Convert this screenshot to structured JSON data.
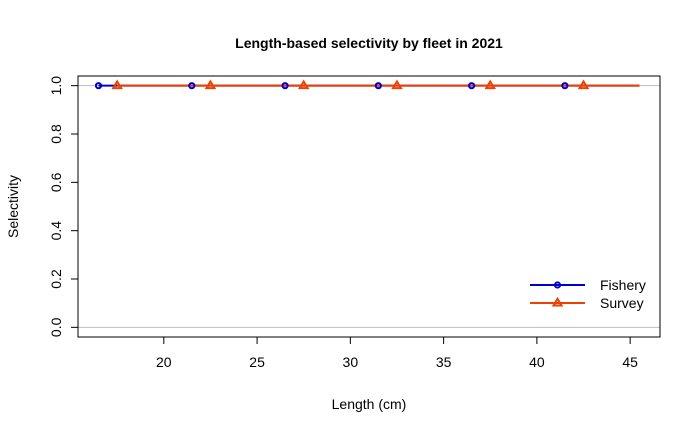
{
  "chart_data": {
    "type": "line",
    "title": "Length-based selectivity by fleet in 2021",
    "xlabel": "Length (cm)",
    "ylabel": "Selectivity",
    "xlim": [
      15.4,
      46.6
    ],
    "ylim": [
      -0.04,
      1.04
    ],
    "xticks": [
      20,
      25,
      30,
      35,
      40,
      45
    ],
    "yticks": [
      0.0,
      0.2,
      0.4,
      0.6,
      0.8,
      1.0
    ],
    "xtick_labels": [
      "20",
      "25",
      "30",
      "35",
      "40",
      "45"
    ],
    "ytick_labels": [
      "0.0",
      "0.2",
      "0.4",
      "0.6",
      "0.8",
      "1.0"
    ],
    "reference_lines": [
      0,
      1
    ],
    "reference_line_color": "#bebebe",
    "legend_position": "bottom-right",
    "series": [
      {
        "name": "Fishery",
        "color": "#0000cd",
        "marker": "circle",
        "line_x": [
          16.5,
          45.5
        ],
        "line_y": [
          1.0,
          1.0
        ],
        "marker_x": [
          16.5,
          21.5,
          26.5,
          31.5,
          36.5,
          41.5
        ],
        "marker_y": [
          1.0,
          1.0,
          1.0,
          1.0,
          1.0,
          1.0
        ]
      },
      {
        "name": "Survey",
        "color": "#ee4000",
        "marker": "triangle",
        "line_x": [
          17.5,
          45.5
        ],
        "line_y": [
          1.0,
          1.0
        ],
        "marker_x": [
          17.5,
          22.5,
          27.5,
          32.5,
          37.5,
          42.5
        ],
        "marker_y": [
          1.0,
          1.0,
          1.0,
          1.0,
          1.0,
          1.0
        ]
      }
    ]
  }
}
